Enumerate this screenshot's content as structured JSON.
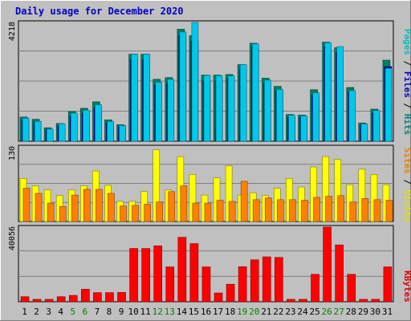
{
  "title": "Daily usage for December 2020",
  "colors": {
    "background": "#c0c0c0",
    "plot_bg": "#c0c0c0",
    "title": "#0000c0",
    "hits_label": "#008080",
    "files_label": "#0000c0",
    "pages_label": "#00c0c0",
    "visits_label": "#e0e000",
    "sites_label": "#f08000",
    "kbytes_label": "#e00000",
    "day_weekend": "#008000",
    "day_weekday": "#000000",
    "hits": "#00805c",
    "files": "#0000c0",
    "pages": "#00c8e8",
    "visits": "#ffff00",
    "sites": "#ff8000",
    "kbytes": "#ff0000"
  },
  "legend": {
    "pages": "Pages",
    "files": "Files",
    "hits": "Hits",
    "sep": " / ",
    "sites": "Sites",
    "visits": "Visits",
    "kbytes": "KBytes"
  },
  "chart_data": [
    {
      "type": "bar",
      "panel": "hits-files-pages",
      "max_label": "4218",
      "ylim": [
        0,
        4218
      ],
      "categories": [
        "1",
        "2",
        "3",
        "4",
        "5",
        "6",
        "7",
        "8",
        "9",
        "10",
        "11",
        "12",
        "13",
        "14",
        "15",
        "16",
        "17",
        "18",
        "19",
        "20",
        "21",
        "22",
        "23",
        "24",
        "25",
        "26",
        "27",
        "28",
        "29",
        "30",
        "31"
      ],
      "weekend_days": [
        "5",
        "6",
        "12",
        "13",
        "19",
        "20",
        "26",
        "27"
      ],
      "series": [
        {
          "name": "Hits",
          "values": [
            860,
            780,
            480,
            630,
            1050,
            1170,
            1400,
            760,
            590,
            3090,
            3090,
            2200,
            2260,
            3980,
            3750,
            2350,
            2350,
            2370,
            2720,
            3480,
            2240,
            1950,
            950,
            930,
            1830,
            3520,
            3320,
            1910,
            650,
            1140,
            2880
          ]
        },
        {
          "name": "Files",
          "values": [
            750,
            690,
            400,
            560,
            900,
            1000,
            1200,
            650,
            520,
            2900,
            2900,
            2000,
            2050,
            3750,
            3550,
            2150,
            2150,
            2200,
            2550,
            3350,
            2050,
            1800,
            850,
            850,
            1650,
            3350,
            3150,
            1750,
            580,
            1000,
            2650
          ]
        },
        {
          "name": "Pages",
          "values": [
            820,
            710,
            430,
            620,
            1000,
            1100,
            1300,
            700,
            560,
            3090,
            3090,
            2100,
            2200,
            3880,
            4218,
            2340,
            2330,
            2320,
            2720,
            3460,
            2170,
            1840,
            920,
            900,
            1720,
            3500,
            3360,
            1800,
            620,
            1090,
            2590
          ]
        }
      ]
    },
    {
      "type": "bar",
      "panel": "visits-sites",
      "max_label": "130",
      "ylim": [
        0,
        130
      ],
      "categories": [
        "1",
        "2",
        "3",
        "4",
        "5",
        "6",
        "7",
        "8",
        "9",
        "10",
        "11",
        "12",
        "13",
        "14",
        "15",
        "16",
        "17",
        "18",
        "19",
        "20",
        "21",
        "22",
        "23",
        "24",
        "25",
        "26",
        "27",
        "28",
        "29",
        "30",
        "31"
      ],
      "series": [
        {
          "name": "Visits",
          "values": [
            75,
            62,
            55,
            45,
            55,
            62,
            88,
            63,
            35,
            35,
            52,
            125,
            55,
            113,
            82,
            46,
            76,
            97,
            46,
            50,
            45,
            58,
            75,
            60,
            95,
            113,
            108,
            64,
            91,
            82,
            64
          ]
        },
        {
          "name": "Sites",
          "values": [
            58,
            49,
            32,
            26,
            46,
            56,
            56,
            49,
            27,
            28,
            30,
            34,
            52,
            62,
            32,
            32,
            37,
            35,
            70,
            38,
            41,
            38,
            38,
            37,
            42,
            44,
            45,
            34,
            40,
            38,
            37
          ]
        }
      ]
    },
    {
      "type": "bar",
      "panel": "kbytes",
      "max_label": "40056",
      "ylim": [
        0,
        40056
      ],
      "categories": [
        "1",
        "2",
        "3",
        "4",
        "5",
        "6",
        "7",
        "8",
        "9",
        "10",
        "11",
        "12",
        "13",
        "14",
        "15",
        "16",
        "17",
        "18",
        "19",
        "20",
        "21",
        "22",
        "23",
        "24",
        "25",
        "26",
        "27",
        "28",
        "29",
        "30",
        "31"
      ],
      "series": [
        {
          "name": "KBytes",
          "values": [
            2700,
            1300,
            1300,
            2700,
            3400,
            6700,
            4900,
            4900,
            5000,
            28600,
            28600,
            30000,
            18700,
            34600,
            31200,
            18700,
            4700,
            9400,
            18800,
            22500,
            24100,
            23800,
            1300,
            1300,
            14700,
            40056,
            30500,
            14700,
            1300,
            1300,
            18700
          ]
        }
      ]
    }
  ]
}
